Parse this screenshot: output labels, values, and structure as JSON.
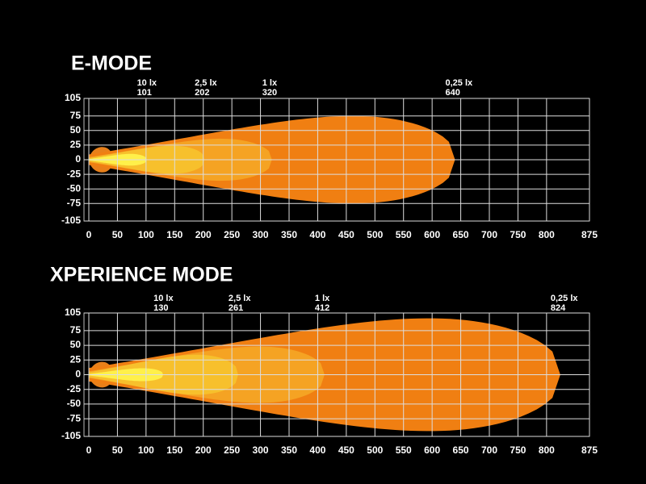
{
  "chart_data": [
    {
      "type": "beam",
      "title": "E-MODE",
      "xlim": [
        0,
        875
      ],
      "ylim": [
        -105,
        105
      ],
      "xticks": [
        0,
        50,
        100,
        150,
        200,
        250,
        300,
        350,
        400,
        450,
        500,
        550,
        600,
        650,
        700,
        750,
        800,
        875
      ],
      "yticks": [
        105,
        75,
        50,
        25,
        0,
        -25,
        -50,
        -75,
        -105
      ],
      "grid": true,
      "series": [
        {
          "name": "0,25 lx",
          "reach": 640,
          "halfwidth": 75,
          "color": "#f07f12"
        },
        {
          "name": "1 lx",
          "reach": 320,
          "halfwidth": 36,
          "color": "#f5a323"
        },
        {
          "name": "2,5 lx",
          "reach": 202,
          "halfwidth": 24,
          "color": "#f7c02c"
        },
        {
          "name": "10 lx",
          "reach": 101,
          "halfwidth": 10,
          "color": "#fff04a"
        }
      ]
    },
    {
      "type": "beam",
      "title": "XPERIENCE MODE",
      "xlim": [
        0,
        875
      ],
      "ylim": [
        -105,
        105
      ],
      "xticks": [
        0,
        50,
        100,
        150,
        200,
        250,
        300,
        350,
        400,
        450,
        500,
        550,
        600,
        650,
        700,
        750,
        800,
        875
      ],
      "yticks": [
        105,
        75,
        50,
        25,
        0,
        -25,
        -50,
        -75,
        -105
      ],
      "grid": true,
      "series": [
        {
          "name": "0,25 lx",
          "reach": 824,
          "halfwidth": 96,
          "color": "#f07f12"
        },
        {
          "name": "1 lx",
          "reach": 412,
          "halfwidth": 48,
          "color": "#f5a323"
        },
        {
          "name": "2,5 lx",
          "reach": 261,
          "halfwidth": 34,
          "color": "#f7c02c"
        },
        {
          "name": "10 lx",
          "reach": 130,
          "halfwidth": 11,
          "color": "#fff04a"
        }
      ]
    }
  ]
}
